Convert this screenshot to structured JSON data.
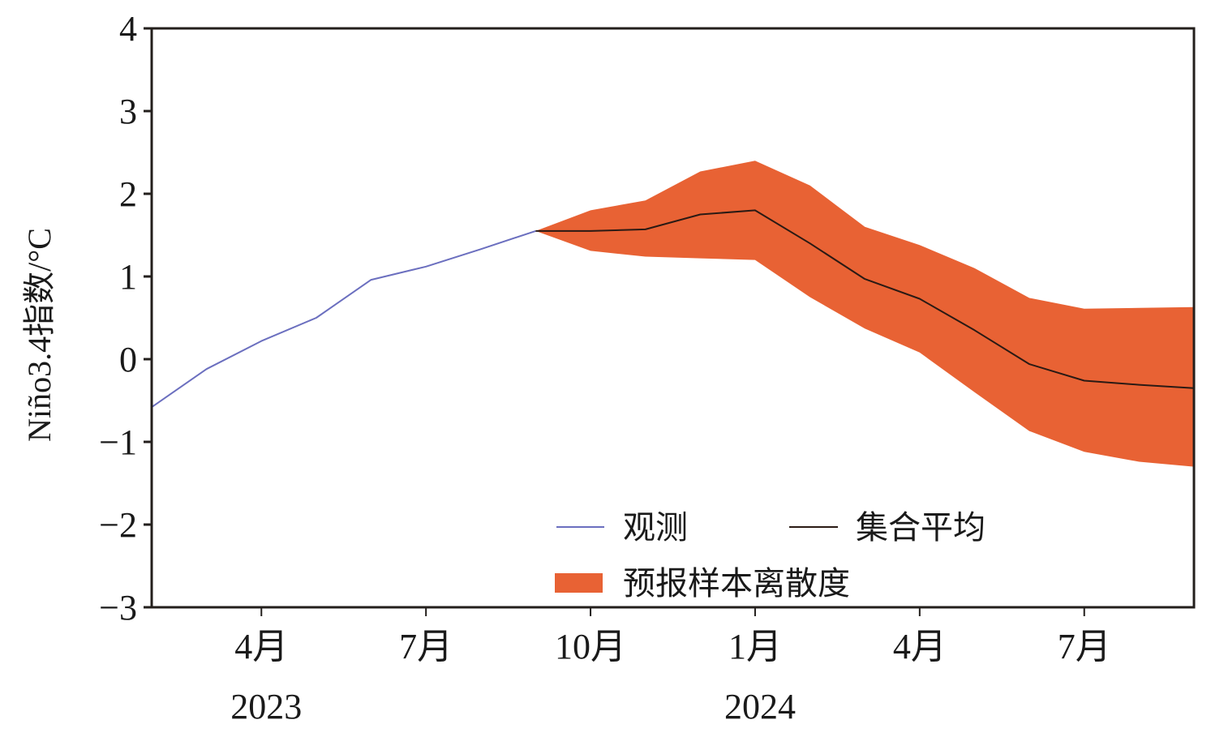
{
  "chart_data": {
    "type": "line",
    "title": "",
    "xlabel": "",
    "ylabel": "Niño3.4指数/°C",
    "ylim": [
      -3,
      4
    ],
    "yticks": [
      "4",
      "3",
      "2",
      "1",
      "0",
      "−1",
      "−2",
      "−3"
    ],
    "ytick_values": [
      4,
      3,
      2,
      1,
      0,
      -1,
      -2,
      -3
    ],
    "x_range_months": [
      "2023-02",
      "2024-09"
    ],
    "xticks": [
      {
        "month": "2023-04",
        "label": "4月"
      },
      {
        "month": "2023-07",
        "label": "7月"
      },
      {
        "month": "2023-10",
        "label": "10月"
      },
      {
        "month": "2024-01",
        "label": "1月"
      },
      {
        "month": "2024-04",
        "label": "4月"
      },
      {
        "month": "2024-07",
        "label": "7月"
      }
    ],
    "year_labels": [
      {
        "month": "2023-04",
        "label": "2023"
      },
      {
        "month": "2024-01",
        "label": "2024"
      }
    ],
    "grid": false,
    "legend": {
      "placement": "bottom-center",
      "entries": [
        {
          "key": "observed",
          "label": "观测",
          "kind": "line"
        },
        {
          "key": "ensemble_mean",
          "label": "集合平均",
          "kind": "line"
        },
        {
          "key": "spread",
          "label": "预报样本离散度",
          "kind": "area"
        }
      ]
    },
    "colors": {
      "observed": "#6b6fbf",
      "ensemble_mean": "#2a1a14",
      "spread": "#e86234",
      "axis": "#231f1c"
    },
    "series": [
      {
        "name": "观测",
        "key": "observed",
        "x": [
          "2023-02",
          "2023-03",
          "2023-04",
          "2023-05",
          "2023-06",
          "2023-07",
          "2023-08",
          "2023-09"
        ],
        "values": [
          -0.58,
          -0.12,
          0.22,
          0.5,
          0.96,
          1.12,
          1.33,
          1.55
        ]
      },
      {
        "name": "集合平均",
        "key": "ensemble_mean",
        "x": [
          "2023-09",
          "2023-10",
          "2023-11",
          "2023-12",
          "2024-01",
          "2024-02",
          "2024-03",
          "2024-04",
          "2024-05",
          "2024-06",
          "2024-07",
          "2024-08",
          "2024-09"
        ],
        "values": [
          1.55,
          1.55,
          1.57,
          1.75,
          1.8,
          1.4,
          0.97,
          0.73,
          0.35,
          -0.06,
          -0.26,
          -0.31,
          -0.35
        ]
      },
      {
        "name": "预报样本离散度",
        "key": "spread",
        "x": [
          "2023-09",
          "2023-10",
          "2023-11",
          "2023-12",
          "2024-01",
          "2024-02",
          "2024-03",
          "2024-04",
          "2024-05",
          "2024-06",
          "2024-07",
          "2024-08",
          "2024-09"
        ],
        "upper": [
          1.55,
          1.8,
          1.92,
          2.27,
          2.4,
          2.1,
          1.6,
          1.38,
          1.1,
          0.74,
          0.61,
          0.62,
          0.63
        ],
        "lower": [
          1.55,
          1.31,
          1.24,
          1.22,
          1.2,
          0.75,
          0.37,
          0.08,
          -0.4,
          -0.87,
          -1.12,
          -1.24,
          -1.3
        ]
      }
    ]
  }
}
